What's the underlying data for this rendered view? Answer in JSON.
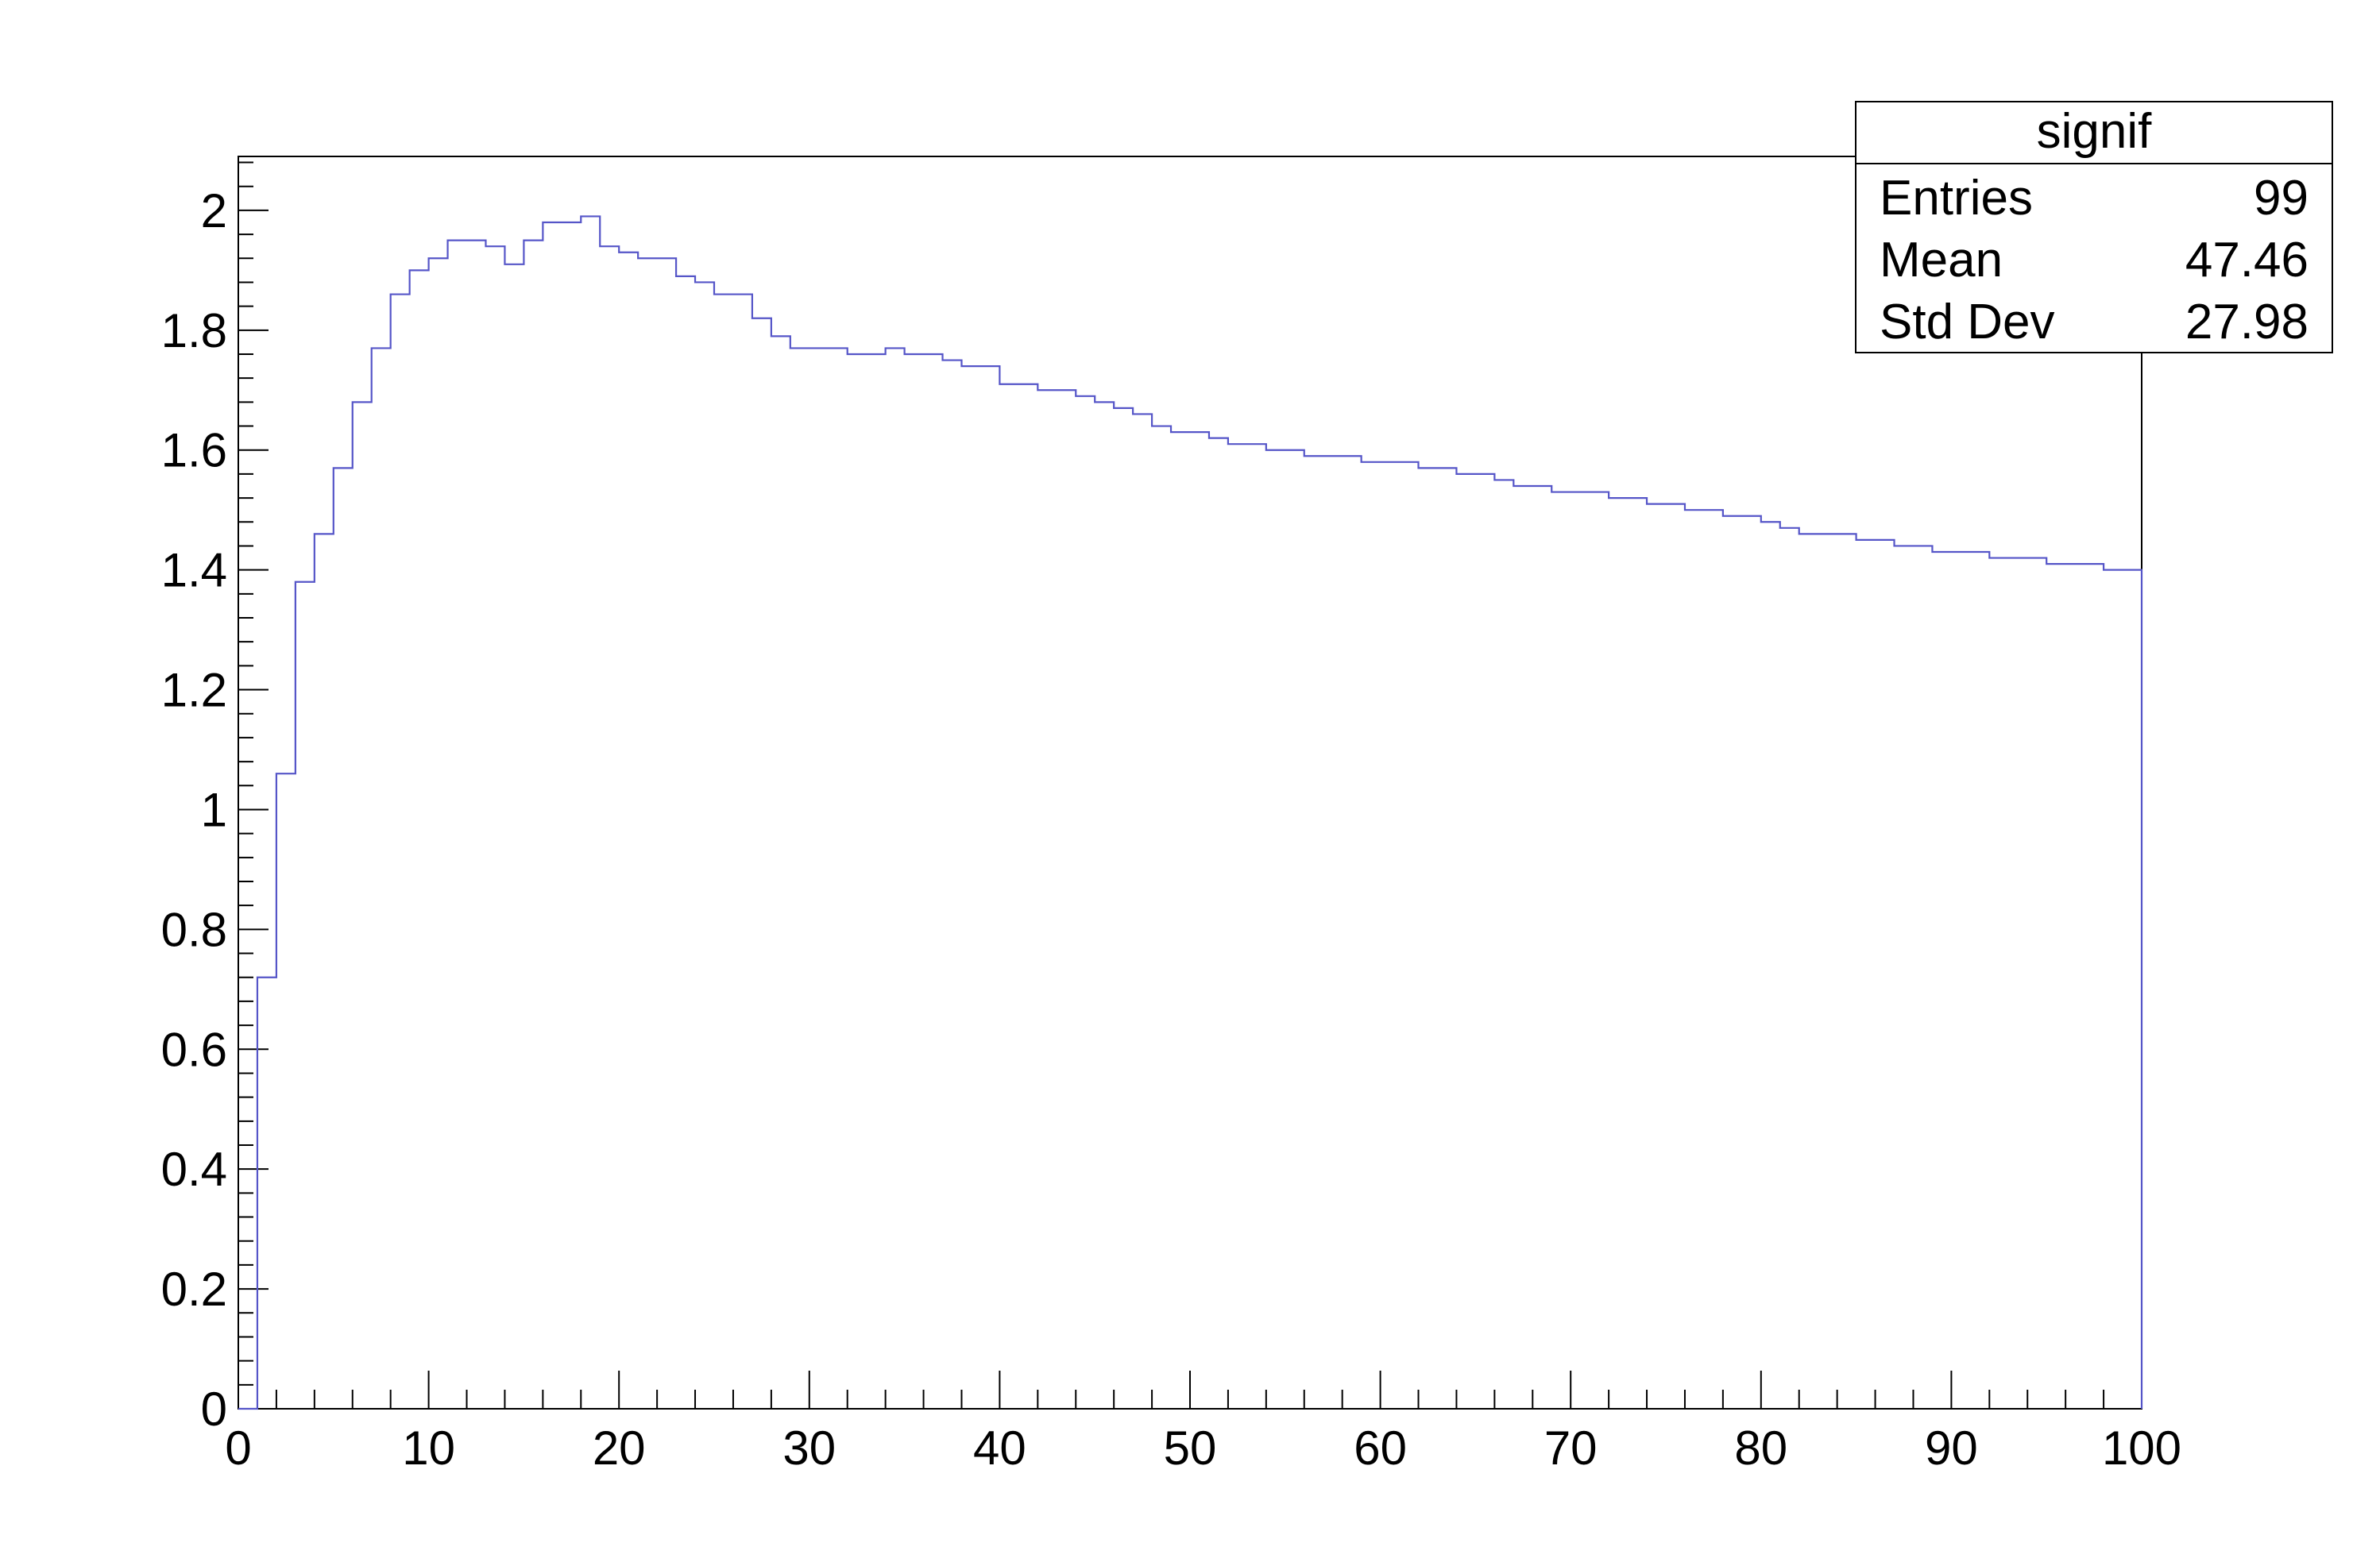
{
  "chart_data": {
    "type": "histogram",
    "title": "",
    "xlabel": "",
    "ylabel": "",
    "xlim": [
      0,
      100
    ],
    "ylim": [
      0,
      2.09
    ],
    "bin_edges_start": 0,
    "bin_width": 1,
    "line_color": "#5555c8",
    "x_ticks": [
      0,
      10,
      20,
      30,
      40,
      50,
      60,
      70,
      80,
      90,
      100
    ],
    "x_tick_labels": [
      "0",
      "10",
      "20",
      "30",
      "40",
      "50",
      "60",
      "70",
      "80",
      "90",
      "100"
    ],
    "y_ticks": [
      0,
      0.2,
      0.4,
      0.6,
      0.8,
      1,
      1.2,
      1.4,
      1.6,
      1.8,
      2
    ],
    "y_tick_labels": [
      "0",
      "0.2",
      "0.4",
      "0.6",
      "0.8",
      "1",
      "1.2",
      "1.4",
      "1.6",
      "1.8",
      "2"
    ],
    "values": [
      0,
      0.72,
      1.06,
      1.38,
      1.46,
      1.57,
      1.68,
      1.77,
      1.86,
      1.9,
      1.92,
      1.95,
      1.95,
      1.94,
      1.91,
      1.95,
      1.98,
      1.98,
      1.99,
      1.94,
      1.93,
      1.92,
      1.92,
      1.89,
      1.88,
      1.86,
      1.86,
      1.82,
      1.79,
      1.77,
      1.77,
      1.77,
      1.76,
      1.76,
      1.77,
      1.76,
      1.76,
      1.75,
      1.74,
      1.74,
      1.71,
      1.71,
      1.7,
      1.7,
      1.69,
      1.68,
      1.67,
      1.66,
      1.64,
      1.63,
      1.63,
      1.62,
      1.61,
      1.61,
      1.6,
      1.6,
      1.59,
      1.59,
      1.59,
      1.58,
      1.58,
      1.58,
      1.57,
      1.57,
      1.56,
      1.56,
      1.55,
      1.54,
      1.54,
      1.53,
      1.53,
      1.53,
      1.52,
      1.52,
      1.51,
      1.51,
      1.5,
      1.5,
      1.49,
      1.49,
      1.48,
      1.47,
      1.46,
      1.46,
      1.46,
      1.45,
      1.45,
      1.44,
      1.44,
      1.43,
      1.43,
      1.43,
      1.42,
      1.42,
      1.42,
      1.41,
      1.41,
      1.41,
      1.4,
      1.4
    ]
  },
  "stats_box": {
    "title": "signif",
    "rows": [
      {
        "label": "Entries",
        "value": "99"
      },
      {
        "label": "Mean",
        "value": "47.46"
      },
      {
        "label": "Std Dev",
        "value": "27.98"
      }
    ]
  }
}
